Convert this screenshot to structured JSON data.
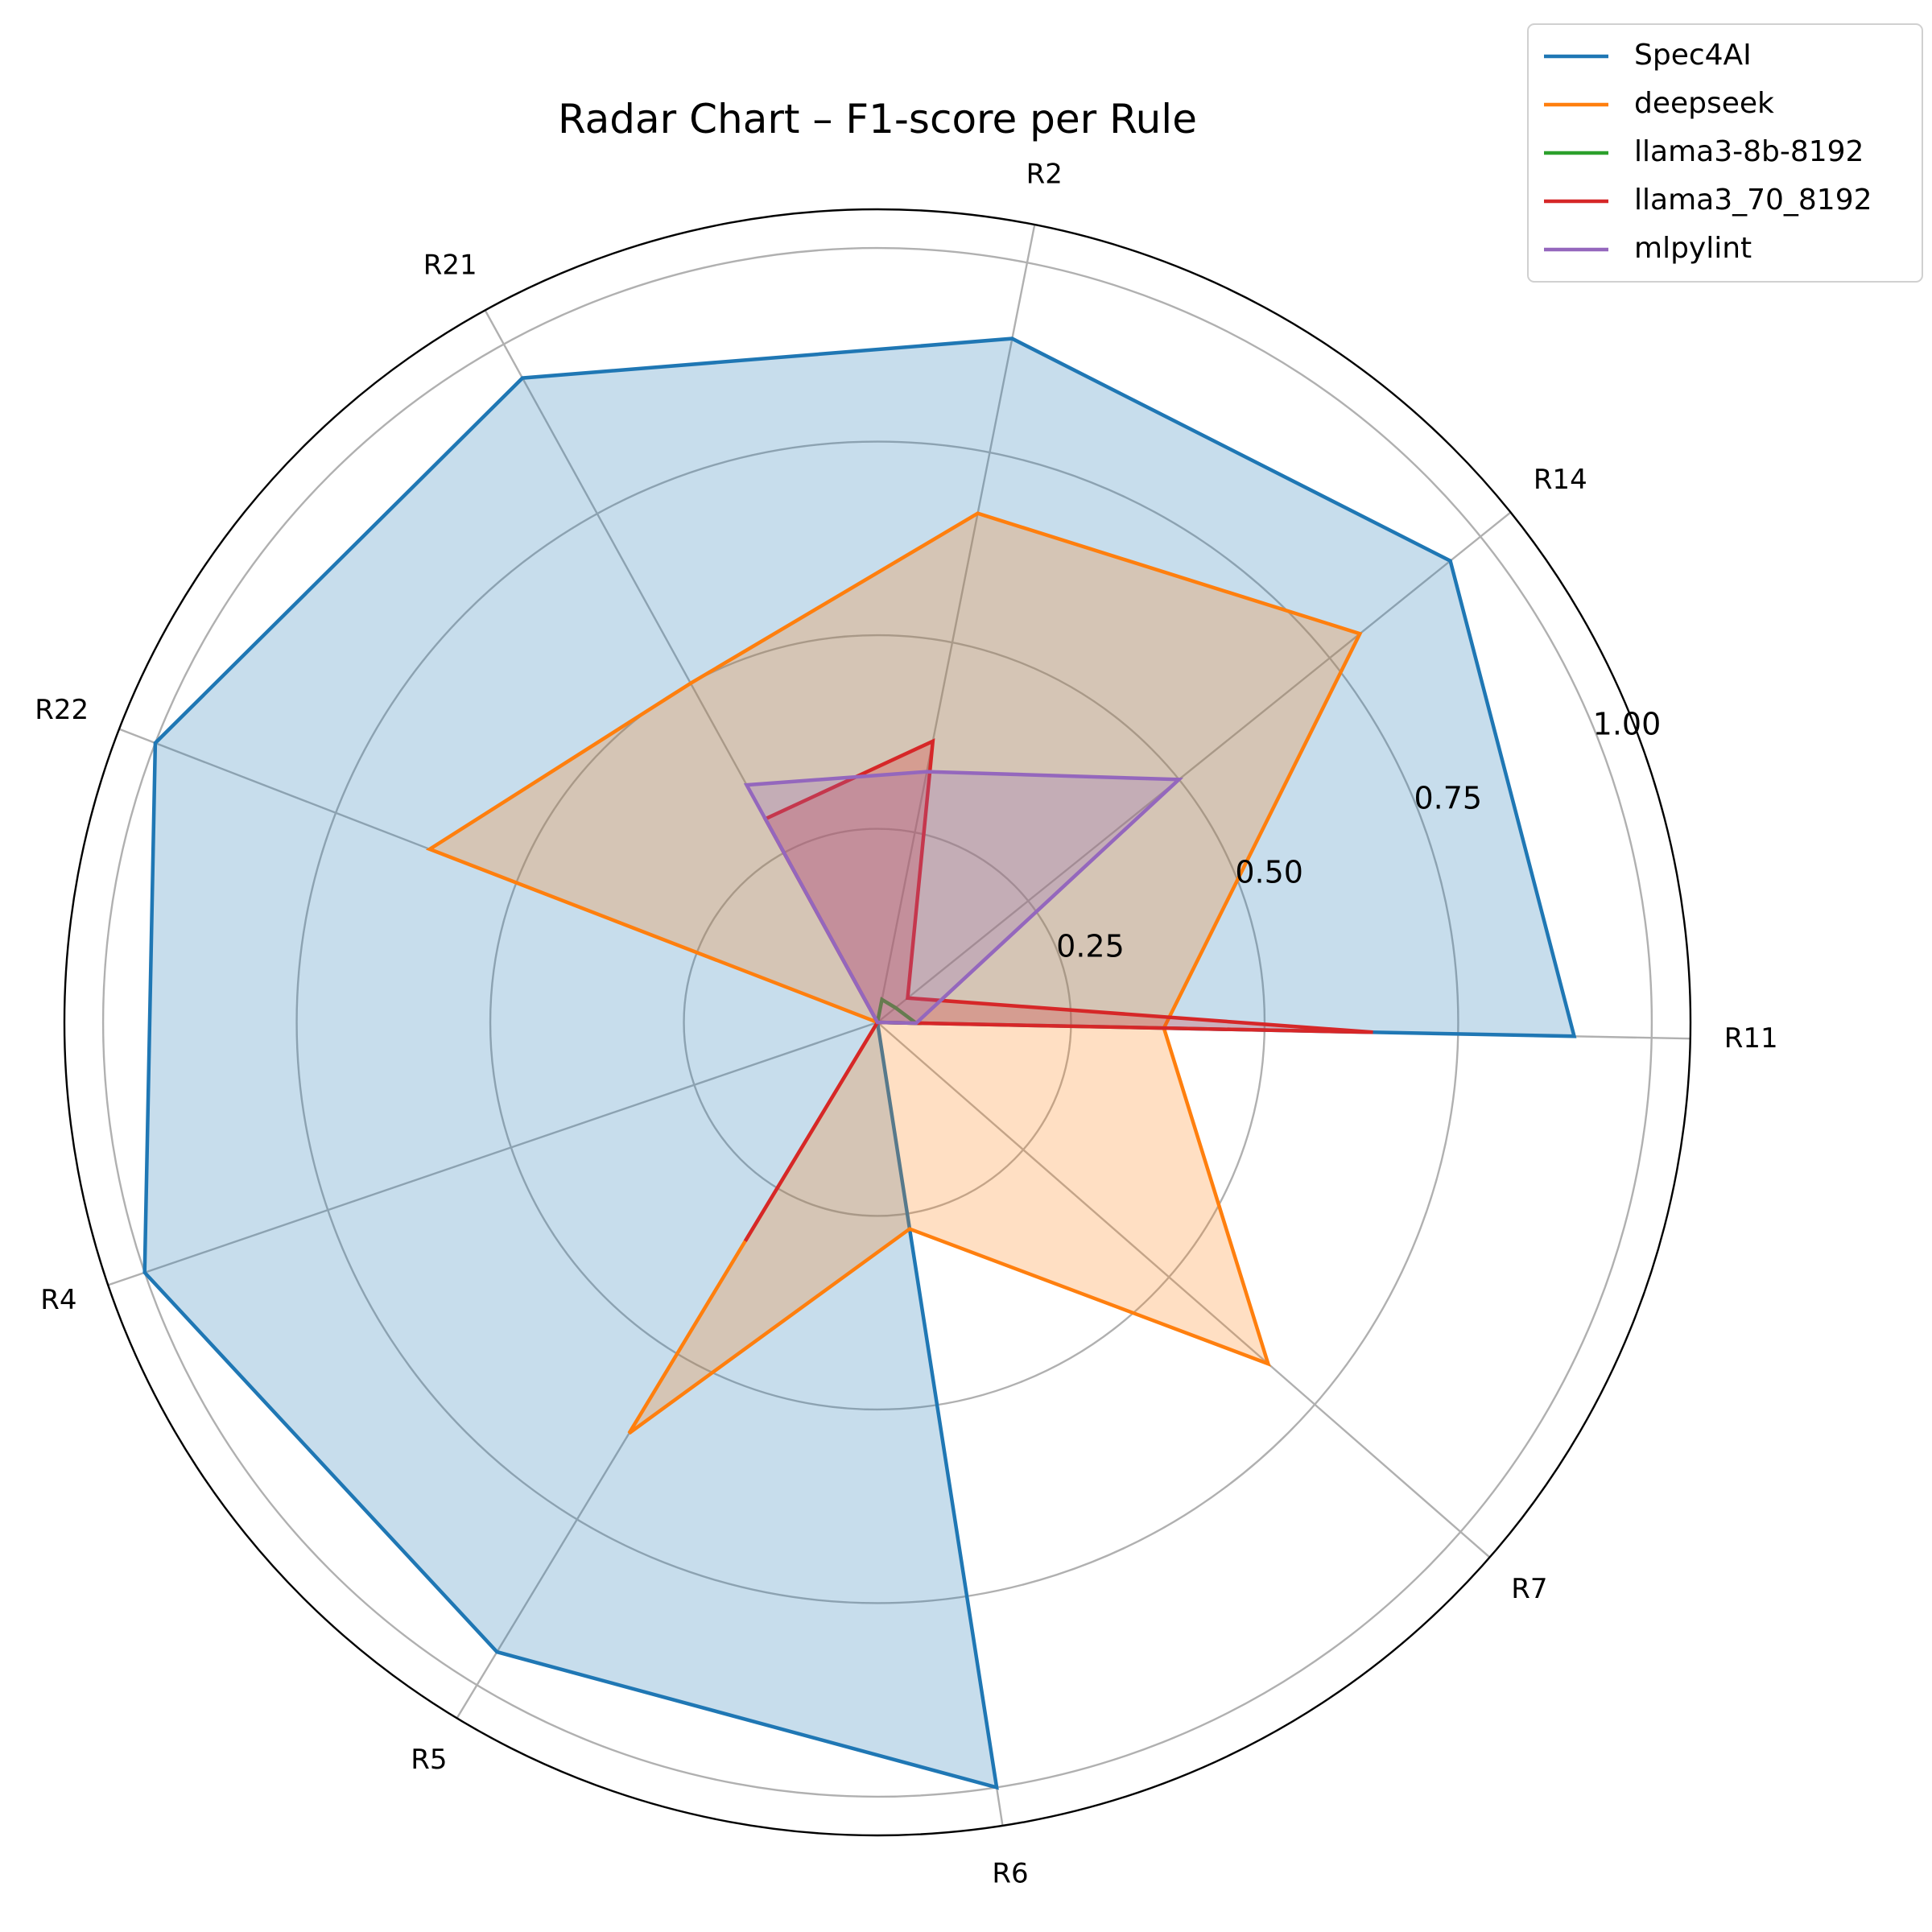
{
  "chart_data": {
    "type": "radar",
    "title": "Radar Chart – F1-score per Rule",
    "categories": [
      "R11",
      "R14",
      "R2",
      "R21",
      "R22",
      "R4",
      "R5",
      "R6",
      "R7"
    ],
    "radial_ticks": [
      "0.25",
      "0.50",
      "0.75",
      "1.00"
    ],
    "radial_tick_values": [
      0.25,
      0.5,
      0.75,
      1.0
    ],
    "rlim": [
      0,
      1.05
    ],
    "grid": true,
    "legend_position": "top-right",
    "series": [
      {
        "name": "Spec4AI",
        "color": "#1f77b4",
        "values": [
          0.9,
          0.95,
          0.9,
          0.95,
          1.0,
          1.0,
          0.95,
          1.0,
          0.0
        ],
        "filled": true
      },
      {
        "name": "deepseek",
        "color": "#ff7f0e",
        "values": [
          0.37,
          0.8,
          0.67,
          0.5,
          0.62,
          0.0,
          0.62,
          0.27,
          0.67
        ],
        "filled": true
      },
      {
        "name": "llama3-8b-8192",
        "color": "#2ca02c",
        "values": [
          0.05,
          0.03,
          0.03,
          0.0,
          0.0,
          0.0,
          0.0,
          0.0,
          0.0
        ],
        "filled": false
      },
      {
        "name": "llama3_70_8192",
        "color": "#d62728",
        "values": [
          0.64,
          0.05,
          0.37,
          0.3,
          0.0,
          0.0,
          0.33,
          0.0,
          0.0
        ],
        "filled": true
      },
      {
        "name": "mlpylint",
        "color": "#9467bd",
        "values": [
          0.05,
          0.5,
          0.33,
          0.35,
          0.0,
          0.0,
          0.0,
          0.0,
          0.0
        ],
        "filled": true
      }
    ]
  }
}
